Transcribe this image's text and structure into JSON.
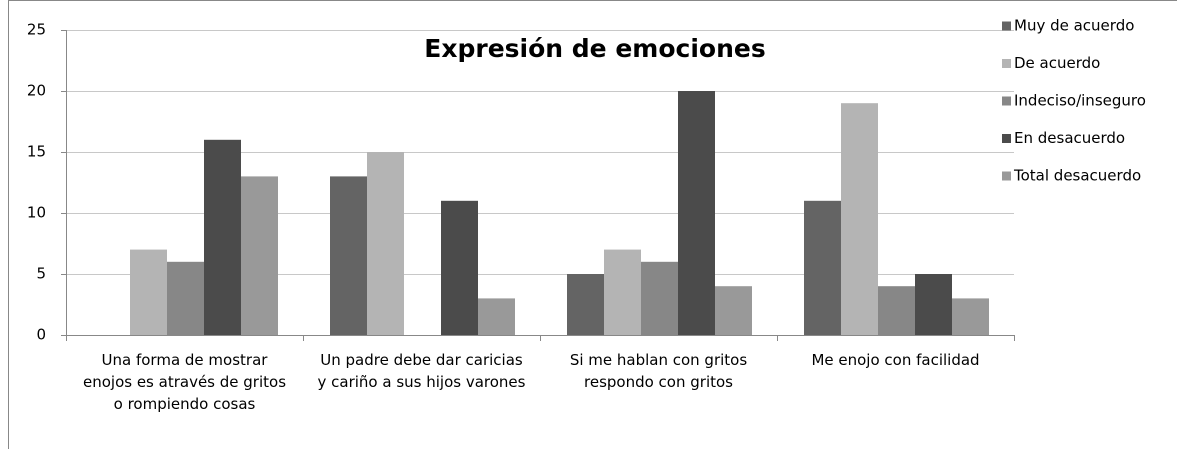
{
  "chart_data": {
    "type": "bar",
    "title": "Expresión de emociones",
    "categories": [
      "Una forma de mostrar\nenojos es através de gritos\no rompiendo cosas",
      "Un padre debe dar caricias\ny cariño a sus hijos varones",
      "Si me hablan con gritos\nrespondo con gritos",
      "Me enojo con facilidad"
    ],
    "series": [
      {
        "name": "Muy de acuerdo",
        "color": "#646464",
        "values": [
          0,
          13,
          5,
          11
        ]
      },
      {
        "name": "De acuerdo",
        "color": "#b4b4b4",
        "values": [
          7,
          15,
          7,
          19
        ]
      },
      {
        "name": "Indeciso/inseguro",
        "color": "#878787",
        "values": [
          6,
          0,
          6,
          4
        ]
      },
      {
        "name": "En desacuerdo",
        "color": "#4b4b4b",
        "values": [
          16,
          11,
          20,
          5
        ]
      },
      {
        "name": "Total desacuerdo",
        "color": "#999999",
        "values": [
          13,
          3,
          4,
          3
        ]
      }
    ],
    "ylim": [
      0,
      25
    ],
    "yticks": [
      0,
      5,
      10,
      15,
      20,
      25
    ],
    "grid": true,
    "legend": "right"
  }
}
